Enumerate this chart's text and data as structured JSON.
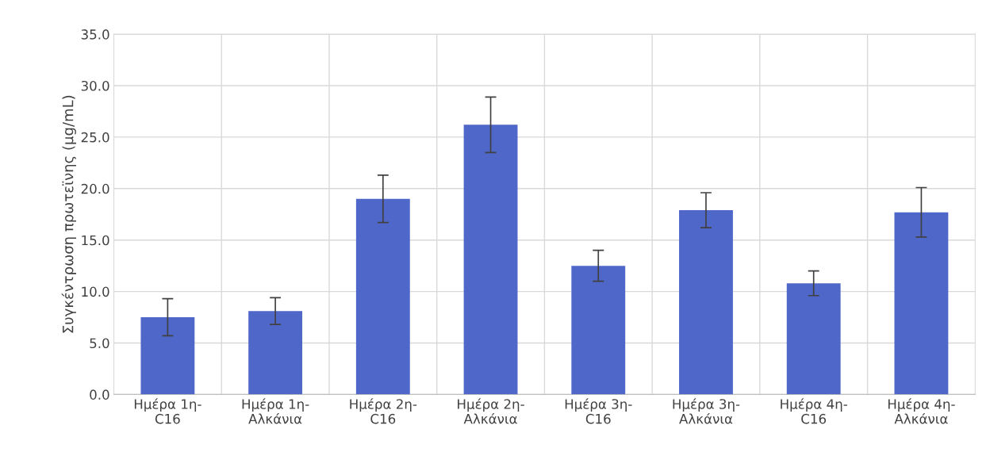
{
  "chart_data": {
    "type": "bar",
    "ylabel": "Συγκέντρωση πρωτεϊνης (μg/mL)",
    "categories": [
      "Ημέρα 1η-C16",
      "Ημέρα 1η-Αλκάνια",
      "Ημέρα 2η-C16",
      "Ημέρα 2η-Αλκάνια",
      "Ημέρα 3η-C16",
      "Ημέρα 3η-Αλκάνια",
      "Ημέρα 4η-C16",
      "Ημέρα 4η-Αλκάνια"
    ],
    "values": [
      7.5,
      8.1,
      19.0,
      26.2,
      12.5,
      17.9,
      10.8,
      17.7
    ],
    "errors": [
      1.8,
      1.3,
      2.3,
      2.7,
      1.5,
      1.7,
      1.2,
      2.4
    ],
    "color": "#4e67c8",
    "ylim": [
      0,
      35
    ],
    "yticks": [
      {
        "value": 0,
        "label": "0.0"
      },
      {
        "value": 5,
        "label": "5.0"
      },
      {
        "value": 10,
        "label": "10.0"
      },
      {
        "value": 15,
        "label": "15.0"
      },
      {
        "value": 20,
        "label": "20.0"
      },
      {
        "value": 25,
        "label": "25.0"
      },
      {
        "value": 30,
        "label": "30.0"
      },
      {
        "value": 35,
        "label": "35.0"
      }
    ],
    "grid": true
  }
}
